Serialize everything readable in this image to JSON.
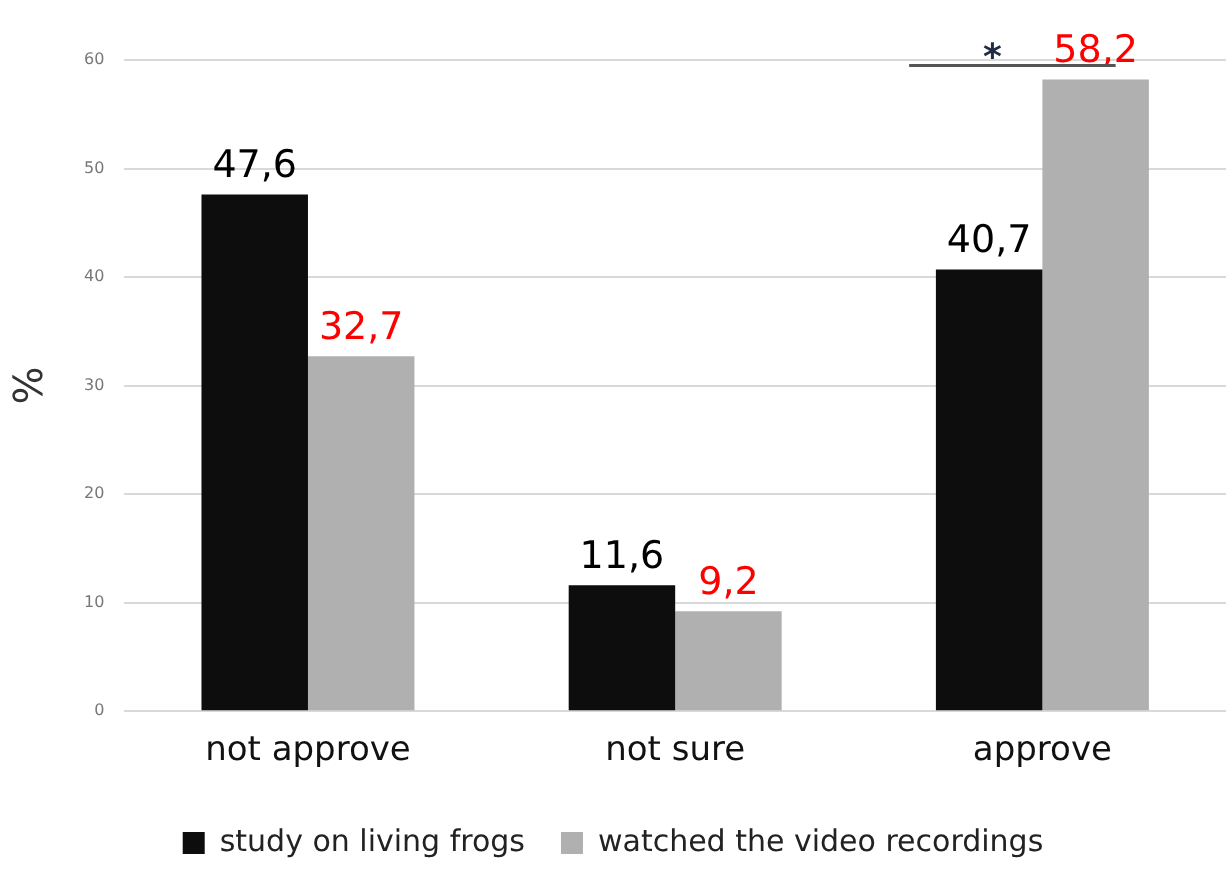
{
  "chart_data": {
    "type": "bar",
    "ylabel": "%",
    "categories": [
      "not approve",
      "not sure",
      "approve"
    ],
    "series": [
      {
        "name": "study on living frogs",
        "color": "#0d0d0d",
        "values": [
          47.6,
          11.6,
          40.7
        ],
        "value_labels": [
          "47,6",
          "11,6",
          "40,7"
        ]
      },
      {
        "name": "watched the video recordings",
        "color": "#b0b0b0",
        "values": [
          32.7,
          9.2,
          58.2
        ],
        "value_labels": [
          "32,7",
          "9,2",
          "58,2"
        ]
      }
    ],
    "annotations": [
      "*"
    ],
    "ylim": [
      0,
      60
    ],
    "yticks": [
      0,
      10,
      20,
      30,
      40,
      50,
      60
    ],
    "grid": "y",
    "legend": "bottom"
  }
}
